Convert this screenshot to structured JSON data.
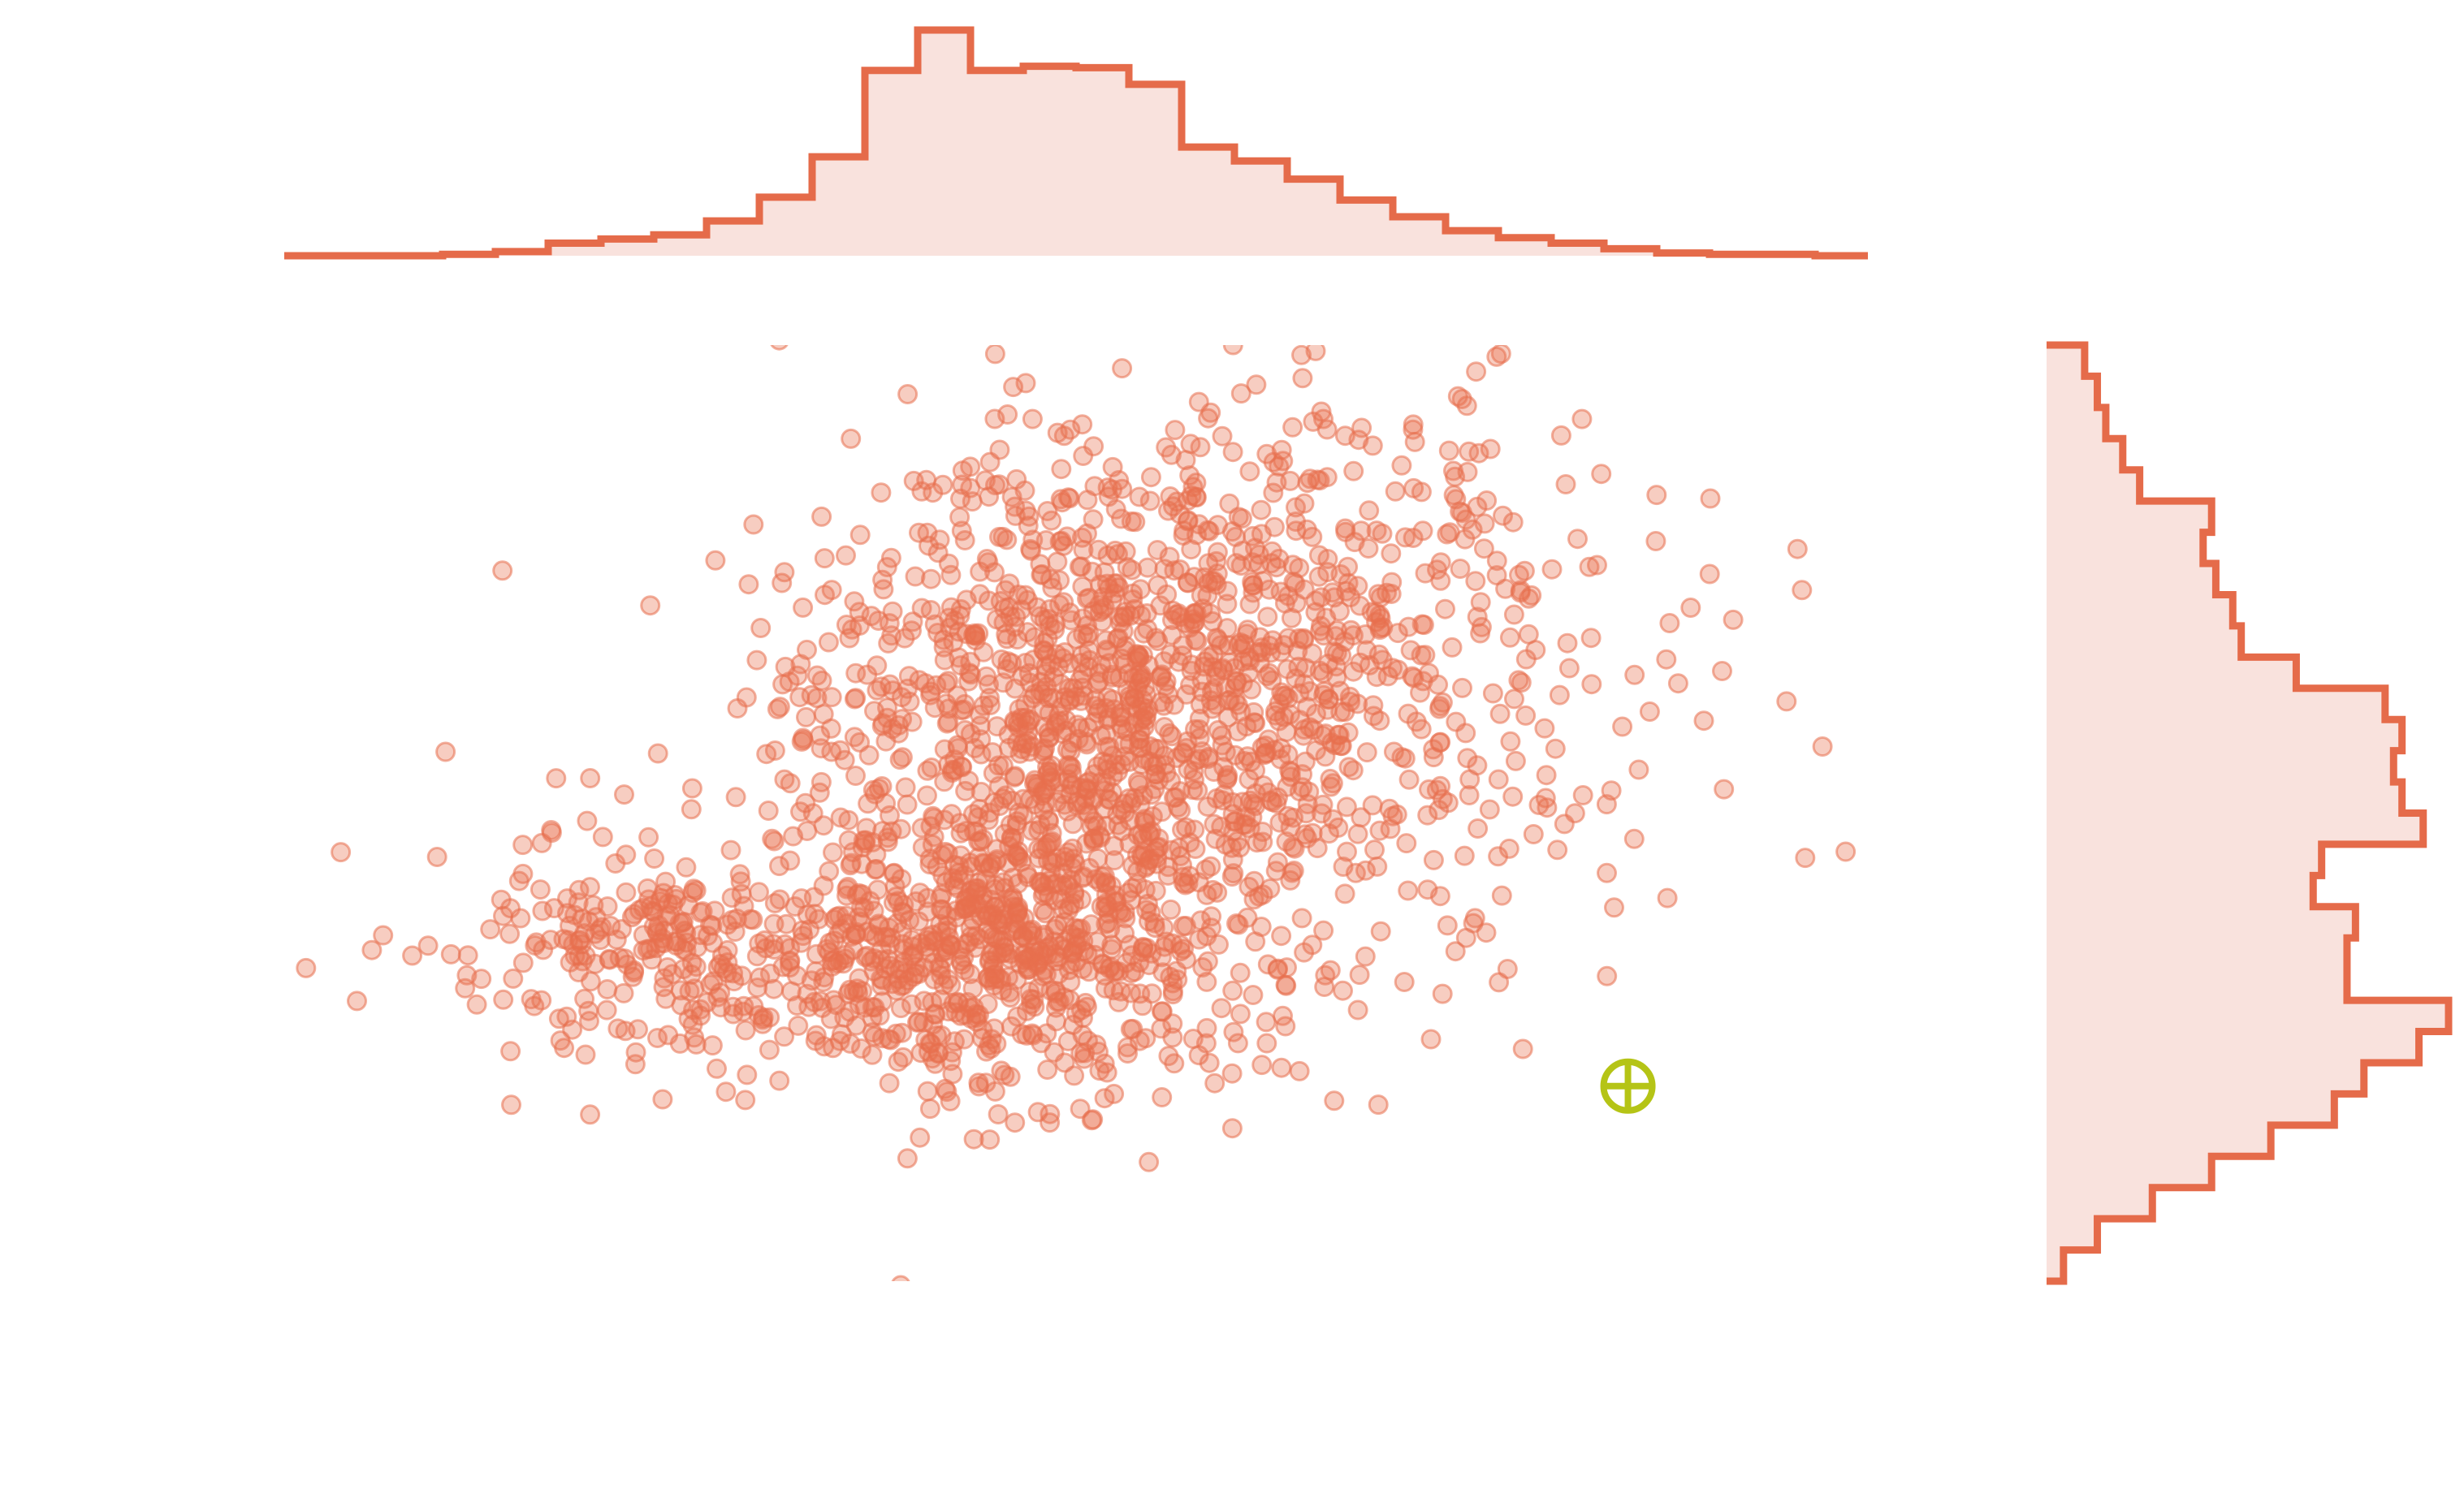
{
  "chart_data": {
    "type": "scatter",
    "title": "",
    "xlabel": "",
    "ylabel": "",
    "grid": false,
    "axes_visible": false,
    "xlim": [
      -3.3,
      3.3
    ],
    "ylim": [
      -3.0,
      3.0
    ],
    "colors": {
      "points": "#e8704e",
      "hist_line": "#e56b4a",
      "hist_fill": "#f9e2dd",
      "marker": "#b5c416"
    },
    "point_opacity": 0.35,
    "series": [
      {
        "clusters": [
          {
            "center": [
              -0.45,
              -0.9
            ],
            "spread": [
              0.55,
              0.45
            ],
            "count": 650
          },
          {
            "center": [
              0.1,
              0.55
            ],
            "spread": [
              0.65,
              0.85
            ],
            "count": 1100
          },
          {
            "center": [
              -1.9,
              -0.9
            ],
            "spread": [
              0.45,
              0.35
            ],
            "count": 220
          },
          {
            "center": [
              0.9,
              1.5
            ],
            "spread": [
              0.8,
              0.7
            ],
            "count": 300
          },
          {
            "center": [
              0.6,
              0.0
            ],
            "spread": [
              1.1,
              1.0
            ],
            "count": 230
          }
        ]
      }
    ],
    "histogram_x": {
      "bin_edges": [
        -3.3,
        -3.08,
        -2.86,
        -2.64,
        -2.42,
        -2.2,
        -1.98,
        -1.76,
        -1.54,
        -1.32,
        -1.1,
        -0.88,
        -0.66,
        -0.44,
        -0.22,
        0.0,
        0.22,
        0.44,
        0.66,
        0.88,
        1.1,
        1.32,
        1.54,
        1.76,
        1.98,
        2.2,
        2.42,
        2.64,
        2.86,
        3.08,
        3.3
      ],
      "counts": [
        0,
        0,
        0,
        1,
        3,
        9,
        12,
        15,
        25,
        42,
        71,
        133,
        162,
        133,
        136,
        135,
        123,
        78,
        68,
        55,
        40,
        28,
        18,
        13,
        9,
        5,
        2,
        1,
        1,
        0
      ]
    },
    "histogram_y": {
      "bin_edges": [
        -3.0,
        -2.8,
        -2.6,
        -2.4,
        -2.2,
        -2.0,
        -1.8,
        -1.6,
        -1.4,
        -1.2,
        -1.0,
        -0.8,
        -0.6,
        -0.4,
        -0.2,
        0.0,
        0.2,
        0.4,
        0.6,
        0.8,
        1.0,
        1.2,
        1.4,
        1.6,
        1.8,
        2.0,
        2.2,
        2.4,
        2.6,
        2.8,
        3.0
      ],
      "counts": [
        4,
        12,
        25,
        39,
        53,
        68,
        75,
        88,
        95,
        71,
        71,
        73,
        63,
        65,
        89,
        84,
        82,
        84,
        80,
        59,
        46,
        44,
        40,
        37,
        39,
        22,
        18,
        14,
        12,
        9
      ]
    },
    "annotation": {
      "type": "crosshair-circle",
      "x": 2.3,
      "y": -1.75
    }
  }
}
